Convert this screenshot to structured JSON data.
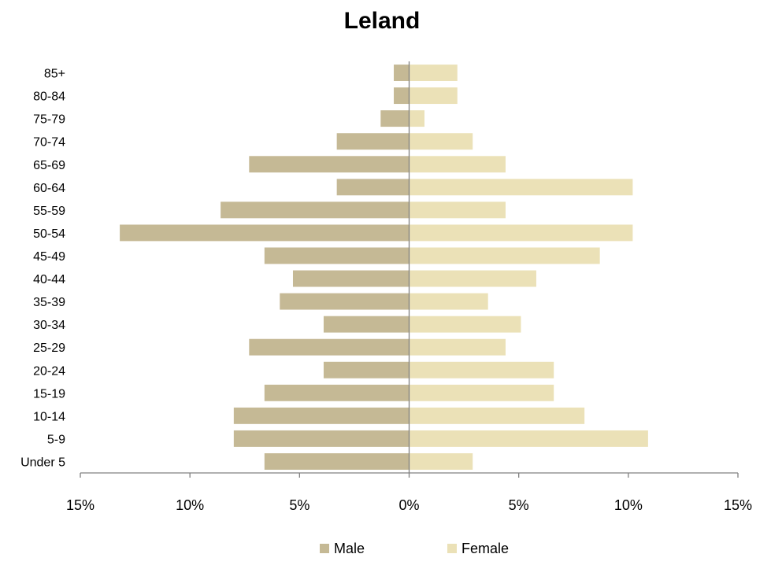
{
  "chart_data": {
    "type": "bar",
    "orientation": "horizontal",
    "title": "Leland",
    "categories": [
      "Under 5",
      "5-9",
      "10-14",
      "15-19",
      "20-24",
      "25-29",
      "30-34",
      "35-39",
      "40-44",
      "45-49",
      "50-54",
      "55-59",
      "60-64",
      "65-69",
      "70-74",
      "75-79",
      "80-84",
      "85+"
    ],
    "series": [
      {
        "name": "Male",
        "color": "#c5b995",
        "values": [
          -6.6,
          -8.0,
          -8.0,
          -6.6,
          -3.9,
          -7.3,
          -3.9,
          -5.9,
          -5.3,
          -6.6,
          -13.2,
          -8.6,
          -3.3,
          -7.3,
          -3.3,
          -1.3,
          -0.7,
          -0.7
        ]
      },
      {
        "name": "Female",
        "color": "#ebe1b7",
        "values": [
          2.9,
          10.9,
          8.0,
          6.6,
          6.6,
          4.4,
          5.1,
          3.6,
          5.8,
          8.7,
          10.2,
          4.4,
          10.2,
          4.4,
          2.9,
          0.7,
          2.2,
          2.2
        ]
      }
    ],
    "xlim": [
      -15,
      15
    ],
    "xticks": [
      -15,
      -10,
      -5,
      0,
      5,
      10,
      15
    ],
    "xtick_labels": [
      "15%",
      "10%",
      "5%",
      "0%",
      "5%",
      "10%",
      "15%"
    ],
    "grid": false,
    "legend_position": "bottom"
  }
}
